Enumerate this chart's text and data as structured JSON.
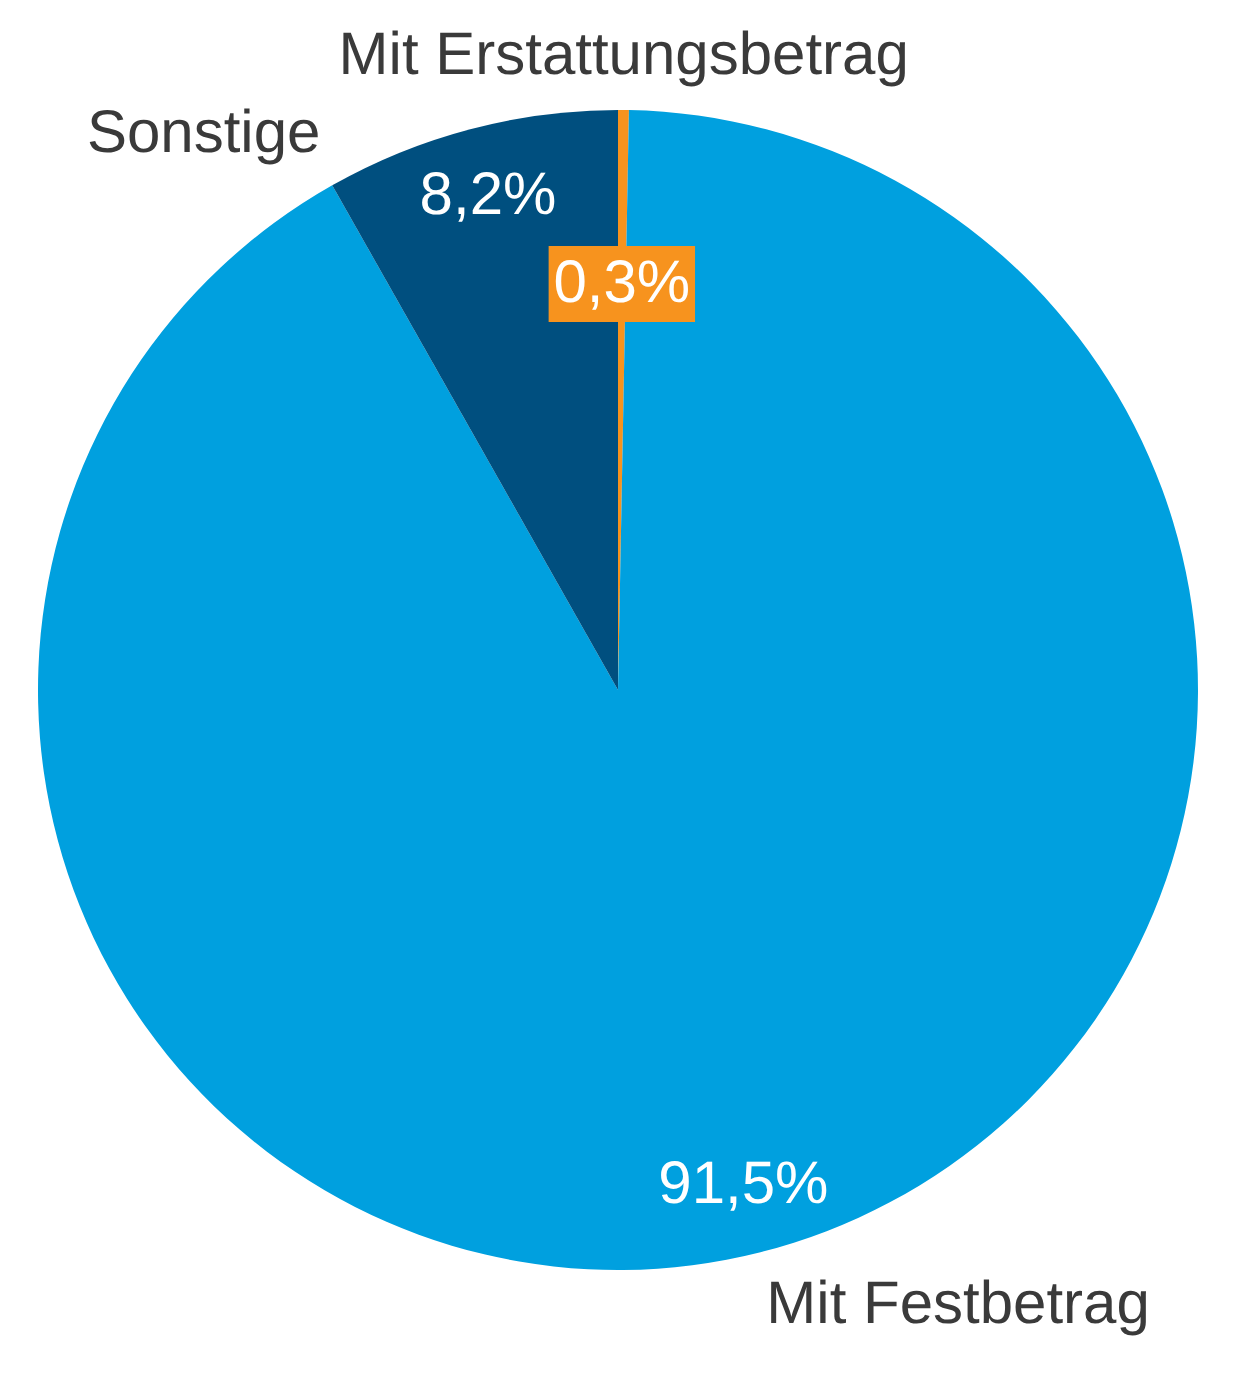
{
  "chart_data": {
    "type": "pie",
    "categories": [
      "Mit Erstattungsbetrag",
      "Mit Festbetrag",
      "Sonstige"
    ],
    "values": [
      0.3,
      91.5,
      8.2
    ],
    "colors": [
      "#f7931e",
      "#00a0df",
      "#004f7f"
    ],
    "value_labels": [
      "0,3%",
      "91,5%",
      "8,2%"
    ]
  }
}
